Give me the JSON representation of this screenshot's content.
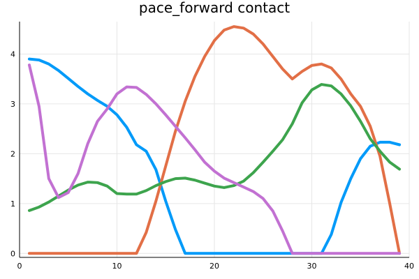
{
  "chart_data": {
    "type": "line",
    "title": "pace_forward contact",
    "xlabel": "",
    "ylabel": "",
    "xlim": [
      0,
      40
    ],
    "ylim": [
      -0.08,
      4.65
    ],
    "xticks": [
      0,
      10,
      20,
      30,
      40
    ],
    "yticks": [
      0,
      1,
      2,
      3,
      4
    ],
    "grid": true,
    "legend": "none",
    "series": [
      {
        "color": "#009af9",
        "x": [
          1,
          2,
          3,
          4,
          5,
          6,
          7,
          8,
          9,
          10,
          11,
          12,
          13,
          14,
          15,
          16,
          17,
          18,
          19,
          20,
          21,
          22,
          23,
          24,
          25,
          26,
          27,
          28,
          29,
          30,
          31,
          32,
          33,
          34,
          35,
          36,
          37,
          38,
          39
        ],
        "values": [
          3.9,
          3.88,
          3.8,
          3.67,
          3.51,
          3.35,
          3.2,
          3.07,
          2.95,
          2.78,
          2.53,
          2.18,
          2.05,
          1.68,
          1.05,
          0.48,
          0,
          0,
          0,
          0,
          0,
          0,
          0,
          0,
          0,
          0,
          0,
          0,
          0,
          0,
          0,
          0.38,
          1.02,
          1.5,
          1.9,
          2.15,
          2.23,
          2.23,
          2.18
        ]
      },
      {
        "color": "#e26f46",
        "x": [
          1,
          2,
          3,
          4,
          5,
          6,
          7,
          8,
          9,
          10,
          11,
          12,
          13,
          14,
          15,
          16,
          17,
          18,
          19,
          20,
          21,
          22,
          23,
          24,
          25,
          26,
          27,
          28,
          29,
          30,
          31,
          32,
          33,
          34,
          35,
          36,
          37,
          38,
          39
        ],
        "values": [
          0,
          0,
          0,
          0,
          0,
          0,
          0,
          0,
          0,
          0,
          0,
          0,
          0.42,
          1.05,
          1.75,
          2.45,
          3.05,
          3.55,
          3.95,
          4.27,
          4.48,
          4.55,
          4.52,
          4.4,
          4.2,
          3.95,
          3.7,
          3.5,
          3.65,
          3.77,
          3.8,
          3.72,
          3.5,
          3.2,
          2.95,
          2.55,
          1.95,
          1.0,
          0
        ]
      },
      {
        "color": "#3da44d",
        "x": [
          1,
          2,
          3,
          4,
          5,
          6,
          7,
          8,
          9,
          10,
          11,
          12,
          13,
          14,
          15,
          16,
          17,
          18,
          19,
          20,
          21,
          22,
          23,
          24,
          25,
          26,
          27,
          28,
          29,
          30,
          31,
          32,
          33,
          34,
          35,
          36,
          37,
          38,
          39
        ],
        "values": [
          0.86,
          0.93,
          1.03,
          1.15,
          1.27,
          1.37,
          1.43,
          1.42,
          1.35,
          1.2,
          1.19,
          1.19,
          1.26,
          1.36,
          1.44,
          1.5,
          1.51,
          1.47,
          1.41,
          1.35,
          1.32,
          1.36,
          1.45,
          1.62,
          1.83,
          2.05,
          2.28,
          2.6,
          3.02,
          3.28,
          3.39,
          3.36,
          3.2,
          2.96,
          2.65,
          2.3,
          2.05,
          1.83,
          1.69
        ]
      },
      {
        "color": "#c271d2",
        "x": [
          1,
          2,
          3,
          4,
          5,
          6,
          7,
          8,
          9,
          10,
          11,
          12,
          13,
          14,
          15,
          16,
          17,
          18,
          19,
          20,
          21,
          22,
          23,
          24,
          25,
          26,
          27,
          28,
          29,
          30,
          31,
          32,
          33,
          34,
          35,
          36,
          37,
          38,
          39
        ],
        "values": [
          3.78,
          2.95,
          1.5,
          1.12,
          1.22,
          1.6,
          2.2,
          2.65,
          2.9,
          3.2,
          3.34,
          3.33,
          3.19,
          3.0,
          2.78,
          2.55,
          2.32,
          2.08,
          1.83,
          1.65,
          1.51,
          1.42,
          1.33,
          1.24,
          1.1,
          0.85,
          0.45,
          0,
          0,
          0,
          0,
          0,
          0,
          0,
          0,
          0,
          0,
          0,
          0
        ]
      }
    ]
  }
}
